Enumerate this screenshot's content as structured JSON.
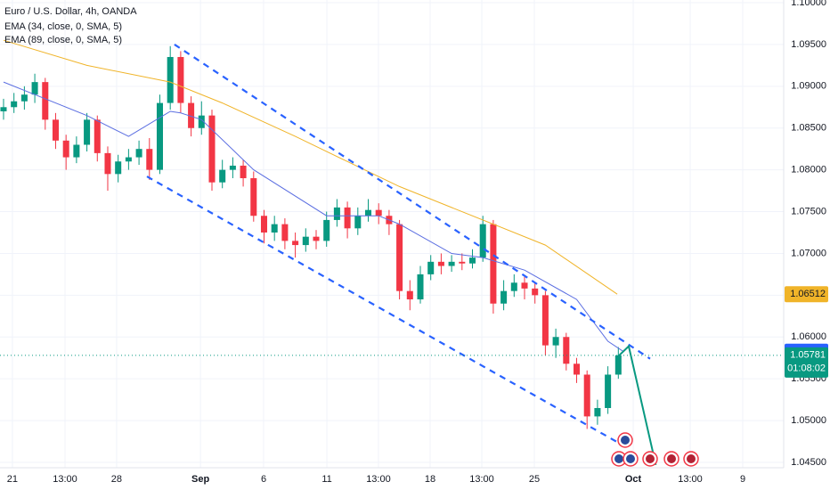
{
  "chart_data": {
    "type": "candlestick",
    "title": "Euro / U.S. Dollar, 4h, OANDA",
    "up_color": "#089981",
    "down_color": "#f23645",
    "xlim": [
      -0.34,
      74.87
    ],
    "ylim": [
      1.04436,
      1.10032
    ],
    "grid": true,
    "xticks": [
      {
        "value": 0.85,
        "label": "21"
      },
      {
        "value": 5.9,
        "label": "13:00"
      },
      {
        "value": 10.85,
        "label": "28"
      },
      {
        "value": 18.9,
        "label": "Sep"
      },
      {
        "value": 24.96,
        "label": "6"
      },
      {
        "value": 31.03,
        "label": "11"
      },
      {
        "value": 35.98,
        "label": "13:00"
      },
      {
        "value": 40.94,
        "label": "18"
      },
      {
        "value": 45.9,
        "label": "13:00"
      },
      {
        "value": 50.94,
        "label": "25"
      },
      {
        "value": 60.43,
        "label": "Oct"
      },
      {
        "value": 65.9,
        "label": "13:00"
      },
      {
        "value": 70.94,
        "label": "9"
      }
    ],
    "yticks": [
      {
        "value": 1.045,
        "label": "1.04500"
      },
      {
        "value": 1.05,
        "label": "1.05000"
      },
      {
        "value": 1.055,
        "label": "1.05500"
      },
      {
        "value": 1.06,
        "label": "1.06000"
      },
      {
        "value": 1.065,
        "label": "1.06500"
      },
      {
        "value": 1.07,
        "label": "1.07000"
      },
      {
        "value": 1.075,
        "label": "1.07500"
      },
      {
        "value": 1.08,
        "label": "1.08000"
      },
      {
        "value": 1.085,
        "label": "1.08500"
      },
      {
        "value": 1.09,
        "label": "1.09000"
      },
      {
        "value": 1.095,
        "label": "1.09500"
      },
      {
        "value": 1.1,
        "label": "1.10000"
      }
    ],
    "open": [
      1.087,
      1.0875,
      1.0882,
      1.089,
      1.0905,
      1.086,
      1.0835,
      1.0815,
      1.083,
      1.086,
      1.082,
      1.0795,
      1.081,
      1.0815,
      1.0825,
      1.08,
      1.088,
      1.0935,
      1.088,
      1.085,
      1.0865,
      1.0785,
      1.08,
      1.0805,
      1.079,
      1.0745,
      1.0725,
      1.0735,
      1.0715,
      1.071,
      1.072,
      1.0715,
      1.074,
      1.0755,
      1.073,
      1.0745,
      1.0752,
      1.0745,
      1.0735,
      1.0655,
      1.0645,
      1.0675,
      1.069,
      1.0685,
      1.069,
      1.0688,
      1.0695,
      1.0735,
      1.064,
      1.0655,
      1.0665,
      1.0658,
      1.065,
      1.059,
      1.06,
      1.0568,
      1.0555,
      1.0505,
      1.0515,
      1.0555
    ],
    "high": [
      1.0885,
      1.0892,
      1.09,
      1.0915,
      1.091,
      1.0868,
      1.0842,
      1.084,
      1.0868,
      1.0865,
      1.0828,
      1.0818,
      1.0825,
      1.0835,
      1.0838,
      1.089,
      1.0948,
      1.0942,
      1.0888,
      1.0882,
      1.0872,
      1.0812,
      1.0815,
      1.0812,
      1.0798,
      1.0752,
      1.0745,
      1.0742,
      1.0725,
      1.073,
      1.0728,
      1.075,
      1.0765,
      1.0762,
      1.0755,
      1.0765,
      1.076,
      1.0752,
      1.074,
      1.0668,
      1.0685,
      1.0698,
      1.07,
      1.0698,
      1.07,
      1.0705,
      1.0745,
      1.074,
      1.0668,
      1.0675,
      1.0672,
      1.0665,
      1.0655,
      1.061,
      1.0605,
      1.0575,
      1.056,
      1.0525,
      1.0565,
      1.0588
    ],
    "low": [
      1.086,
      1.0868,
      1.0872,
      1.088,
      1.0848,
      1.0825,
      1.08,
      1.0808,
      1.0822,
      1.081,
      1.0775,
      1.0785,
      1.08,
      1.0806,
      1.0788,
      1.0795,
      1.0872,
      1.0868,
      1.084,
      1.0842,
      1.0775,
      1.0778,
      1.079,
      1.078,
      1.0738,
      1.0712,
      1.0715,
      1.0705,
      1.0695,
      1.0702,
      1.0705,
      1.0708,
      1.0732,
      1.0718,
      1.0722,
      1.0738,
      1.0735,
      1.0722,
      1.0645,
      1.0632,
      1.064,
      1.0668,
      1.0675,
      1.0678,
      1.068,
      1.0682,
      1.069,
      1.0628,
      1.0632,
      1.0648,
      1.0645,
      1.064,
      1.0578,
      1.0575,
      1.056,
      1.0545,
      1.049,
      1.0495,
      1.0508,
      1.055
    ],
    "close": [
      1.0875,
      1.0882,
      1.089,
      1.0905,
      1.086,
      1.0835,
      1.0815,
      1.083,
      1.086,
      1.082,
      1.0795,
      1.081,
      1.0815,
      1.0825,
      1.08,
      1.088,
      1.0935,
      1.088,
      1.085,
      1.0865,
      1.0785,
      1.08,
      1.0805,
      1.079,
      1.0745,
      1.0725,
      1.0735,
      1.0715,
      1.071,
      1.072,
      1.0715,
      1.074,
      1.0755,
      1.073,
      1.0745,
      1.0752,
      1.0745,
      1.0735,
      1.0655,
      1.0645,
      1.0675,
      1.069,
      1.0685,
      1.069,
      1.0688,
      1.0695,
      1.0735,
      1.064,
      1.0655,
      1.0665,
      1.0658,
      1.065,
      1.059,
      1.06,
      1.0568,
      1.0555,
      1.0505,
      1.0515,
      1.0555,
      1.05781
    ],
    "series": [
      {
        "name": "EMA (34, close, 0, SMA, 5)",
        "color": "#5b6ee1",
        "x": [
          0,
          3,
          8,
          12,
          16,
          17,
          19,
          24,
          31,
          36,
          38,
          43,
          46,
          50,
          55,
          58,
          59.5
        ],
        "values": [
          1.0905,
          1.089,
          1.0865,
          1.084,
          1.087,
          1.0868,
          1.086,
          1.08,
          1.0745,
          1.0745,
          1.0735,
          1.07,
          1.0695,
          1.068,
          1.0645,
          1.0595,
          1.05825
        ]
      },
      {
        "name": "EMA (89, close, 0, SMA, 5)",
        "color": "#f0b429",
        "x": [
          0,
          8,
          16,
          21,
          28,
          33,
          38,
          43,
          47,
          52,
          58.9
        ],
        "values": [
          1.0955,
          1.0925,
          1.0905,
          1.088,
          1.084,
          1.081,
          1.078,
          1.0755,
          1.0735,
          1.071,
          1.06512
        ]
      }
    ],
    "trendlines": [
      {
        "color": "#2962ff",
        "x": [
          16.4,
          62.05
        ],
        "values": [
          1.095,
          1.0574
        ]
      },
      {
        "color": "#2962ff",
        "x": [
          13.76,
          59.5
        ],
        "values": [
          1.0792,
          1.047
        ]
      }
    ],
    "projection": {
      "color": "#089981",
      "x": [
        59,
        60,
        62.6
      ],
      "values": [
        1.0577,
        1.0589,
        1.0447
      ]
    },
    "countdown": "01:08:02"
  }
}
